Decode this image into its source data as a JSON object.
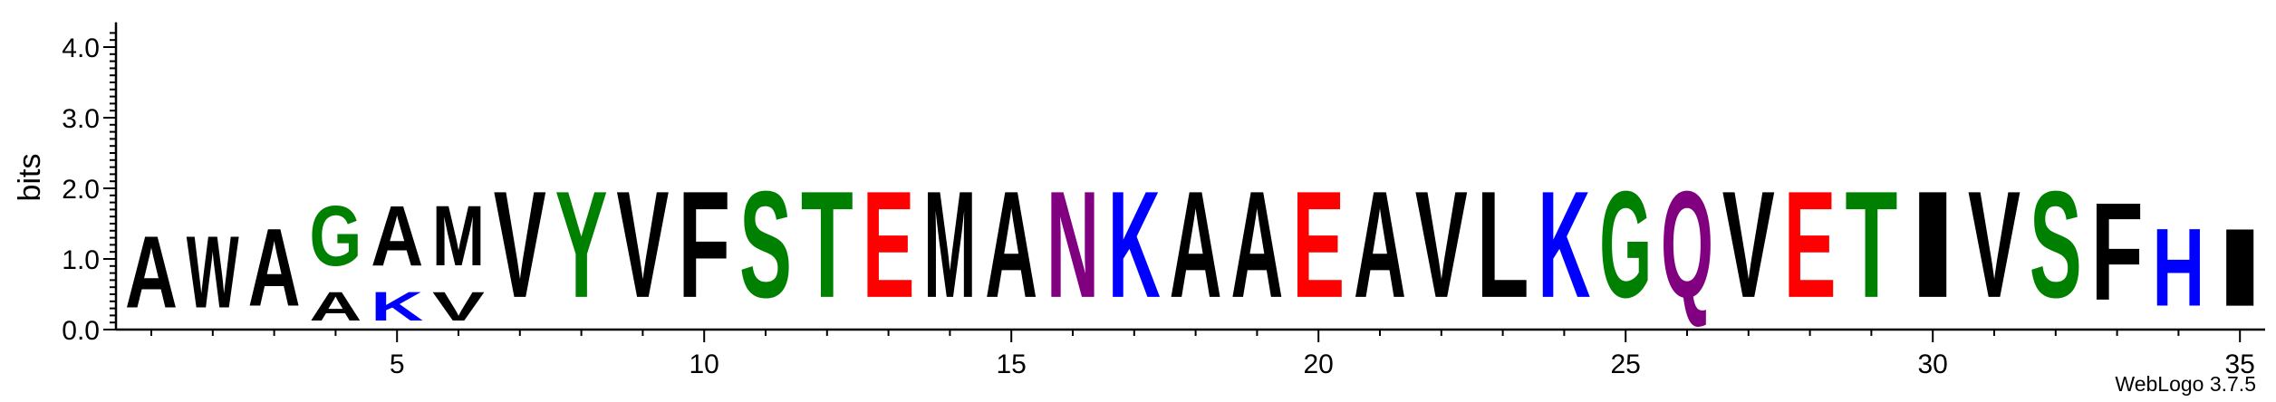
{
  "chart_data": {
    "type": "sequence-logo",
    "ylabel": "bits",
    "ylim": [
      0,
      4.3
    ],
    "y_ticks": [
      "0.0",
      "1.0",
      "2.0",
      "3.0",
      "4.0"
    ],
    "x_range": [
      1,
      35
    ],
    "x_ticks": [
      "5",
      "10",
      "15",
      "20",
      "25",
      "30",
      "35"
    ],
    "colors": {
      "A": "#000000",
      "V": "#000000",
      "M": "#000000",
      "F": "#000000",
      "L": "#000000",
      "I": "#000000",
      "W": "#000000",
      "G": "#008000",
      "S": "#008000",
      "T": "#008000",
      "Y": "#008000",
      "E": "#ff0000",
      "K": "#0000ff",
      "H": "#0000ff",
      "N": "#800080",
      "Q": "#800080"
    },
    "positions": [
      {
        "pos": 1,
        "stack": [
          {
            "letter": "A",
            "bits": 1.62
          }
        ]
      },
      {
        "pos": 2,
        "stack": [
          {
            "letter": "W",
            "bits": 1.62
          }
        ]
      },
      {
        "pos": 3,
        "stack": [
          {
            "letter": "A",
            "bits": 1.75
          }
        ]
      },
      {
        "pos": 4,
        "stack": [
          {
            "letter": "A",
            "bits": 0.65
          },
          {
            "letter": "G",
            "bits": 1.35
          }
        ]
      },
      {
        "pos": 5,
        "stack": [
          {
            "letter": "K",
            "bits": 0.65
          },
          {
            "letter": "A",
            "bits": 1.35
          }
        ]
      },
      {
        "pos": 6,
        "stack": [
          {
            "letter": "V",
            "bits": 0.65
          },
          {
            "letter": "M",
            "bits": 1.35
          }
        ]
      },
      {
        "pos": 7,
        "stack": [
          {
            "letter": "V",
            "bits": 2.4
          }
        ]
      },
      {
        "pos": 8,
        "stack": [
          {
            "letter": "Y",
            "bits": 2.4
          }
        ]
      },
      {
        "pos": 9,
        "stack": [
          {
            "letter": "V",
            "bits": 2.4
          }
        ]
      },
      {
        "pos": 10,
        "stack": [
          {
            "letter": "F",
            "bits": 2.4
          }
        ]
      },
      {
        "pos": 11,
        "stack": [
          {
            "letter": "S",
            "bits": 2.4
          }
        ]
      },
      {
        "pos": 12,
        "stack": [
          {
            "letter": "T",
            "bits": 2.4
          }
        ]
      },
      {
        "pos": 13,
        "stack": [
          {
            "letter": "E",
            "bits": 2.4
          }
        ]
      },
      {
        "pos": 14,
        "stack": [
          {
            "letter": "M",
            "bits": 2.4
          }
        ]
      },
      {
        "pos": 15,
        "stack": [
          {
            "letter": "A",
            "bits": 2.4
          }
        ]
      },
      {
        "pos": 16,
        "stack": [
          {
            "letter": "N",
            "bits": 2.4
          }
        ]
      },
      {
        "pos": 17,
        "stack": [
          {
            "letter": "K",
            "bits": 2.4
          }
        ]
      },
      {
        "pos": 18,
        "stack": [
          {
            "letter": "A",
            "bits": 2.4
          }
        ]
      },
      {
        "pos": 19,
        "stack": [
          {
            "letter": "A",
            "bits": 2.4
          }
        ]
      },
      {
        "pos": 20,
        "stack": [
          {
            "letter": "E",
            "bits": 2.4
          }
        ]
      },
      {
        "pos": 21,
        "stack": [
          {
            "letter": "A",
            "bits": 2.4
          }
        ]
      },
      {
        "pos": 22,
        "stack": [
          {
            "letter": "V",
            "bits": 2.4
          }
        ]
      },
      {
        "pos": 23,
        "stack": [
          {
            "letter": "L",
            "bits": 2.4
          }
        ]
      },
      {
        "pos": 24,
        "stack": [
          {
            "letter": "K",
            "bits": 2.4
          }
        ]
      },
      {
        "pos": 25,
        "stack": [
          {
            "letter": "G",
            "bits": 2.4
          }
        ]
      },
      {
        "pos": 26,
        "stack": [
          {
            "letter": "Q",
            "bits": 2.4
          }
        ]
      },
      {
        "pos": 27,
        "stack": [
          {
            "letter": "V",
            "bits": 2.4
          }
        ]
      },
      {
        "pos": 28,
        "stack": [
          {
            "letter": "E",
            "bits": 2.4
          }
        ]
      },
      {
        "pos": 29,
        "stack": [
          {
            "letter": "T",
            "bits": 2.4
          }
        ]
      },
      {
        "pos": 30,
        "stack": [
          {
            "letter": "I",
            "bits": 2.4
          }
        ]
      },
      {
        "pos": 31,
        "stack": [
          {
            "letter": "V",
            "bits": 2.4
          }
        ]
      },
      {
        "pos": 32,
        "stack": [
          {
            "letter": "S",
            "bits": 2.4
          }
        ]
      },
      {
        "pos": 33,
        "stack": [
          {
            "letter": "F",
            "bits": 2.2
          }
        ]
      },
      {
        "pos": 34,
        "stack": [
          {
            "letter": "H",
            "bits": 1.75
          }
        ]
      },
      {
        "pos": 35,
        "stack": [
          {
            "letter": "I",
            "bits": 1.75
          }
        ]
      }
    ]
  },
  "footer": {
    "version_text": "WebLogo 3.7.5"
  }
}
